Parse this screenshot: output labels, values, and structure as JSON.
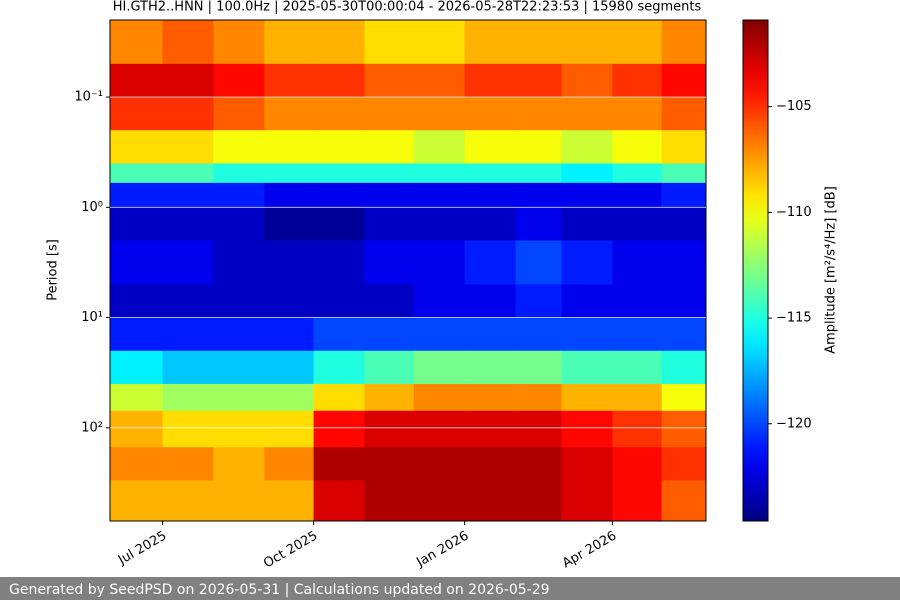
{
  "chart_data": {
    "type": "spectrogram",
    "title": "HI.GTH2..HNN | 100.0Hz | 2025-05-30T00:00:04 - 2026-05-28T22:23:53 | 15980 segments",
    "y_label": "Period [s]",
    "colorbar_label": "Amplitude [m²/s⁴/Hz] [dB]",
    "colormap": "jet",
    "grid": true,
    "y_log": true,
    "y_inverted": true,
    "xlim": [
      "2025-05-30",
      "2026-05-28"
    ],
    "xticks": [
      {
        "value": "2025-07-01",
        "label": "Jul 2025"
      },
      {
        "value": "2025-10-01",
        "label": "Oct 2025"
      },
      {
        "value": "2026-01-01",
        "label": "Jan 2026"
      },
      {
        "value": "2026-04-01",
        "label": "Apr 2026"
      }
    ],
    "ylim": [
      0.02,
      700
    ],
    "yticks": [
      {
        "value": 0.1,
        "label": "10⁻¹"
      },
      {
        "value": 1,
        "label": "10⁰"
      },
      {
        "value": 10,
        "label": "10¹"
      },
      {
        "value": 100,
        "label": "10²"
      }
    ],
    "clim": [
      -124.6,
      -100.9
    ],
    "cticks": [
      {
        "value": -105,
        "label": "−105"
      },
      {
        "value": -110,
        "label": "−110"
      },
      {
        "value": -115,
        "label": "−115"
      },
      {
        "value": -120,
        "label": "−120"
      }
    ],
    "x": [
      "2025-05-30",
      "2025-07-01",
      "2025-08-01",
      "2025-09-01",
      "2025-10-01",
      "2025-11-01",
      "2025-12-01",
      "2026-01-01",
      "2026-02-01",
      "2026-03-01",
      "2026-04-01",
      "2026-05-01",
      "2026-05-28"
    ],
    "period_edges": [
      0.02,
      0.05,
      0.1,
      0.2,
      0.4,
      0.6,
      1,
      2,
      5,
      10,
      20,
      40,
      70,
      150,
      300,
      700
    ],
    "values": [
      [
        -107,
        -106,
        -107,
        -108,
        -108,
        -109,
        -109,
        -108,
        -108,
        -108,
        -108,
        -107
      ],
      [
        -103,
        -103,
        -104,
        -105,
        -105,
        -106,
        -106,
        -105,
        -105,
        -106,
        -105,
        -104
      ],
      [
        -105,
        -105,
        -106,
        -107,
        -107,
        -107,
        -107,
        -107,
        -107,
        -107,
        -107,
        -106
      ],
      [
        -109,
        -109,
        -110,
        -110,
        -110,
        -110,
        -111,
        -110,
        -110,
        -111,
        -110,
        -109
      ],
      [
        -114,
        -114,
        -115,
        -115,
        -115,
        -115,
        -115,
        -115,
        -115,
        -116,
        -115,
        -114
      ],
      [
        -121,
        -121,
        -121,
        -122,
        -122,
        -122,
        -122,
        -122,
        -122,
        -122,
        -122,
        -121
      ],
      [
        -123,
        -123,
        -123,
        -124,
        -124,
        -123,
        -123,
        -123,
        -122,
        -123,
        -123,
        -123
      ],
      [
        -122,
        -122,
        -123,
        -123,
        -123,
        -122,
        -122,
        -121,
        -120,
        -121,
        -122,
        -122
      ],
      [
        -123,
        -123,
        -123,
        -123,
        -123,
        -123,
        -122,
        -122,
        -121,
        -122,
        -122,
        -122
      ],
      [
        -121,
        -121,
        -121,
        -121,
        -120,
        -120,
        -120,
        -120,
        -120,
        -120,
        -120,
        -120
      ],
      [
        -116,
        -117,
        -117,
        -117,
        -115,
        -114,
        -113,
        -113,
        -113,
        -114,
        -114,
        -115
      ],
      [
        -111,
        -112,
        -112,
        -112,
        -109,
        -108,
        -107,
        -107,
        -107,
        -108,
        -108,
        -110
      ],
      [
        -108,
        -109,
        -109,
        -109,
        -104,
        -103,
        -103,
        -103,
        -103,
        -104,
        -105,
        -106
      ],
      [
        -107,
        -107,
        -108,
        -107,
        -102,
        -102,
        -102,
        -102,
        -102,
        -103,
        -104,
        -105
      ],
      [
        -108,
        -108,
        -108,
        -108,
        -103,
        -102,
        -102,
        -102,
        -102,
        -103,
        -104,
        -106
      ]
    ]
  },
  "footer": "Generated by SeedPSD on 2026-05-31 | Calculations updated on 2026-05-29"
}
